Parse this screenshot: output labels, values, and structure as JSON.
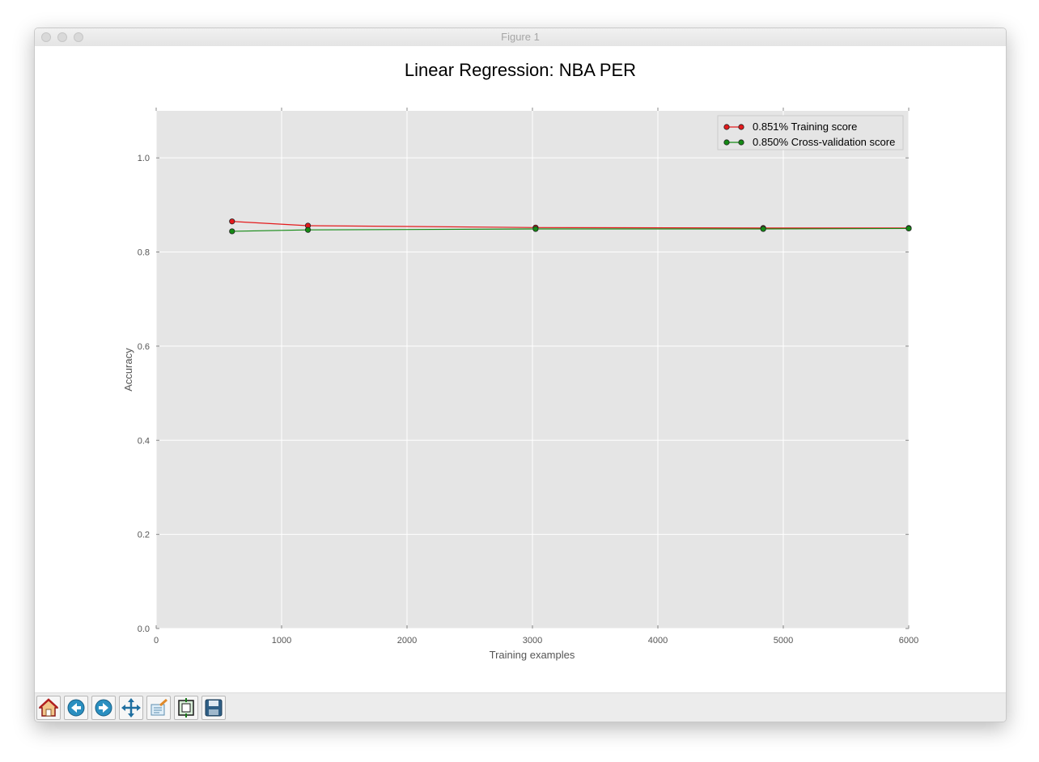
{
  "window": {
    "title": "Figure 1"
  },
  "toolbar": {
    "buttons": [
      {
        "name": "home-button",
        "icon": "home-icon"
      },
      {
        "name": "back-button",
        "icon": "back-arrow-icon"
      },
      {
        "name": "forward-button",
        "icon": "forward-arrow-icon"
      },
      {
        "name": "pan-button",
        "icon": "move-icon"
      },
      {
        "name": "zoom-button",
        "icon": "zoom-rect-icon"
      },
      {
        "name": "subplots-button",
        "icon": "subplots-icon"
      },
      {
        "name": "save-button",
        "icon": "floppy-disk-icon"
      }
    ]
  },
  "chart_data": {
    "type": "line",
    "title": "Linear Regression: NBA PER",
    "xlabel": "Training examples",
    "ylabel": "Accuracy",
    "xlim": [
      0,
      6000
    ],
    "ylim": [
      0.0,
      1.1
    ],
    "xticks": [
      "0",
      "1000",
      "2000",
      "3000",
      "4000",
      "5000",
      "6000"
    ],
    "yticks": [
      "0.0",
      "0.2",
      "0.4",
      "0.6",
      "0.8",
      "1.0"
    ],
    "grid": true,
    "legend_position": "top-right",
    "series": [
      {
        "name": "0.851% Training score",
        "color": "#e41a1c",
        "x": [
          605,
          1210,
          3025,
          4840,
          6000
        ],
        "y": [
          0.865,
          0.856,
          0.852,
          0.851,
          0.851
        ]
      },
      {
        "name": "0.850% Cross-validation score",
        "color": "#148a14",
        "x": [
          605,
          1210,
          3025,
          4840,
          6000
        ],
        "y": [
          0.844,
          0.847,
          0.849,
          0.849,
          0.85
        ]
      }
    ]
  }
}
